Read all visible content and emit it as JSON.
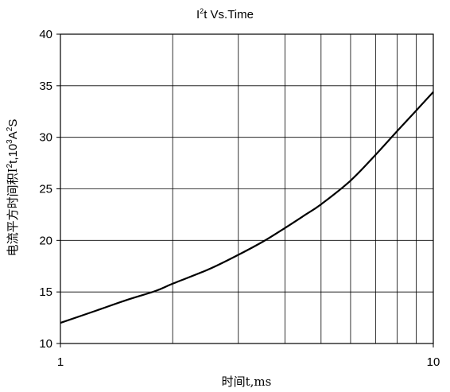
{
  "chart_data": {
    "type": "line",
    "title_base": "I",
    "title_sup": "2",
    "title_rest": "t  Vs.Time",
    "xlabel": "时间t,ms",
    "ylabel_parts": [
      "电流平方时间积I",
      "2",
      "t,10",
      "3",
      "A",
      "2",
      "S"
    ],
    "x_scale": "log",
    "xlim": [
      1,
      10
    ],
    "ylim": [
      10,
      40
    ],
    "x_ticks": [
      1,
      10
    ],
    "x_tick_labels": [
      "1",
      "10"
    ],
    "x_gridlines": [
      2,
      3,
      4,
      5,
      6,
      7,
      8,
      9
    ],
    "y_ticks": [
      10,
      15,
      20,
      25,
      30,
      35,
      40
    ],
    "y_tick_labels": [
      "10",
      "15",
      "20",
      "25",
      "30",
      "35",
      "40"
    ],
    "grid": true,
    "legend": "none",
    "line_color": "#000000",
    "series": [
      {
        "x": [
          1,
          1.25,
          1.5,
          1.8,
          2,
          2.5,
          3,
          3.5,
          4,
          4.5,
          5,
          6,
          7,
          8,
          9,
          10
        ],
        "y": [
          12.0,
          13.2,
          14.2,
          15.1,
          15.8,
          17.2,
          18.6,
          19.9,
          21.2,
          22.4,
          23.5,
          25.8,
          28.3,
          30.6,
          32.6,
          34.4
        ]
      }
    ]
  }
}
